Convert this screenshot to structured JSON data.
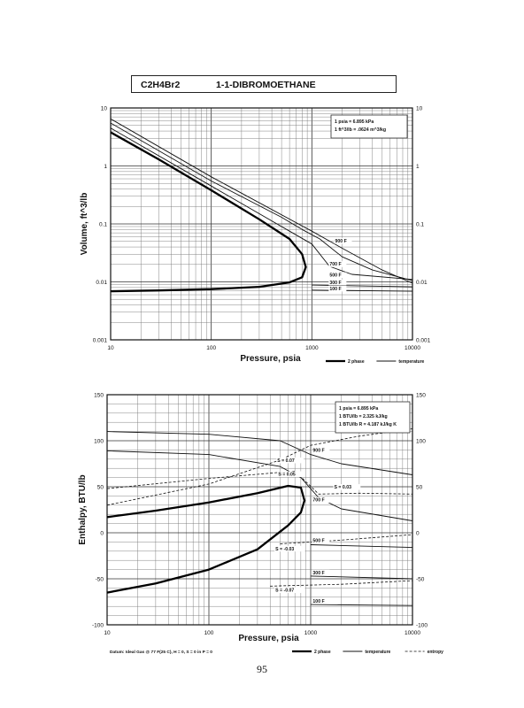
{
  "page_header": {
    "formula": "C2H4Br2",
    "compound": "1-1-DIBROMOETHANE"
  },
  "page_number": "95",
  "chart_data": [
    {
      "type": "line",
      "xscale": "log",
      "yscale": "log",
      "xlabel": "Pressure,  psia",
      "ylabel": "Volume, ft^3/lb",
      "xlim": [
        10,
        10000
      ],
      "ylim": [
        0.001,
        10
      ],
      "xticks": [
        {
          "v": 10,
          "label": "10"
        },
        {
          "v": 100,
          "label": "100"
        },
        {
          "v": 1000,
          "label": "1000"
        },
        {
          "v": 10000,
          "label": "10000"
        }
      ],
      "yticks": [
        {
          "v": 0.001,
          "label": "0.001"
        },
        {
          "v": 0.01,
          "label": "0.01"
        },
        {
          "v": 0.1,
          "label": "0.1"
        },
        {
          "v": 1,
          "label": "1"
        },
        {
          "v": 10,
          "label": "10"
        }
      ],
      "grid": true,
      "conversion_notes": [
        "1 psia  =  6.895 kPa",
        "1 ft^3/lb  =  .0624 m^3/kg"
      ],
      "legend": [
        {
          "label": "2 phase",
          "style": "thick"
        },
        {
          "label": "temperature",
          "style": "thin"
        }
      ],
      "series": [
        {
          "style": "thick",
          "points": [
            [
              10,
              3.8
            ],
            [
              30,
              1.3
            ],
            [
              100,
              0.38
            ],
            [
              300,
              0.12
            ],
            [
              600,
              0.055
            ],
            [
              800,
              0.03
            ],
            [
              870,
              0.018
            ],
            [
              800,
              0.012
            ],
            [
              600,
              0.0098
            ],
            [
              300,
              0.0082
            ],
            [
              100,
              0.0075
            ],
            [
              30,
              0.0071
            ],
            [
              10,
              0.0069
            ]
          ]
        },
        {
          "name": "500 F",
          "style": "thin",
          "points": [
            [
              10,
              4.5
            ],
            [
              100,
              0.45
            ],
            [
              600,
              0.075
            ],
            [
              1000,
              0.045
            ],
            [
              1500,
              0.0185
            ],
            [
              2500,
              0.0135
            ],
            [
              10000,
              0.011
            ]
          ]
        },
        {
          "name": "700 F",
          "style": "thin",
          "points": [
            [
              10,
              5.5
            ],
            [
              100,
              0.55
            ],
            [
              500,
              0.13
            ],
            [
              800,
              0.08
            ],
            [
              1200,
              0.055
            ],
            [
              2000,
              0.027
            ],
            [
              4000,
              0.016
            ],
            [
              10000,
              0.0105
            ]
          ]
        },
        {
          "name": "900 F",
          "style": "thin",
          "points": [
            [
              10,
              6.5
            ],
            [
              100,
              0.65
            ],
            [
              1000,
              0.075
            ],
            [
              2000,
              0.038
            ],
            [
              5000,
              0.016
            ],
            [
              10000,
              0.0095
            ]
          ]
        },
        {
          "name": "300 F",
          "style": "thin",
          "points": [
            [
              1000,
              0.0088
            ],
            [
              10000,
              0.0082
            ]
          ]
        },
        {
          "name": "100 F",
          "style": "thin",
          "points": [
            [
              1000,
              0.0072
            ],
            [
              10000,
              0.0069
            ]
          ]
        }
      ],
      "curve_labels": [
        {
          "label": "900 F",
          "x": 1700,
          "y": 0.048
        },
        {
          "label": "700 F",
          "x": 1500,
          "y": 0.019
        },
        {
          "label": "500 F",
          "x": 1500,
          "y": 0.0123
        },
        {
          "label": "300 F",
          "x": 1500,
          "y": 0.0092
        },
        {
          "label": "100 F",
          "x": 1500,
          "y": 0.0072
        }
      ]
    },
    {
      "type": "line",
      "xscale": "log",
      "yscale": "linear",
      "xlabel": "Pressure,  psia",
      "ylabel": "Enthalpy, BTU/lb",
      "xlim": [
        10,
        10000
      ],
      "ylim": [
        -100,
        150
      ],
      "xticks": [
        {
          "v": 10,
          "label": "10"
        },
        {
          "v": 100,
          "label": "100"
        },
        {
          "v": 1000,
          "label": "1000"
        },
        {
          "v": 10000,
          "label": "10000"
        }
      ],
      "yticks": [
        {
          "v": -100,
          "label": "-100"
        },
        {
          "v": -50,
          "label": "-50"
        },
        {
          "v": 0,
          "label": "0"
        },
        {
          "v": 50,
          "label": "50"
        },
        {
          "v": 100,
          "label": "100"
        },
        {
          "v": 150,
          "label": "150"
        }
      ],
      "grid": true,
      "conversion_notes": [
        "1 psia  =  6.895 kPa",
        "1 BTU/lb  =  2.325 kJ/kg",
        "1 BTU/lb R  =  4.187 kJ/kg K"
      ],
      "datum_note": "Datum: Ideal Gas @ 77 F(25 C),  H = 0,  S = 0 in P = 0",
      "legend": [
        {
          "label": "2 phase",
          "style": "thick"
        },
        {
          "label": "temperature",
          "style": "thin"
        },
        {
          "label": "entropy",
          "style": "dashed"
        }
      ],
      "series": [
        {
          "style": "thick",
          "points": [
            [
              10,
              17
            ],
            [
              30,
              24
            ],
            [
              100,
              33
            ],
            [
              300,
              43
            ],
            [
              600,
              51
            ],
            [
              800,
              49
            ],
            [
              870,
              35
            ],
            [
              800,
              22
            ],
            [
              600,
              8
            ],
            [
              300,
              -18
            ],
            [
              100,
              -40
            ],
            [
              30,
              -55
            ],
            [
              10,
              -65
            ]
          ]
        },
        {
          "name": "900 F",
          "style": "thin",
          "points": [
            [
              10,
              110
            ],
            [
              100,
              107
            ],
            [
              500,
              100
            ],
            [
              1000,
              85
            ],
            [
              2000,
              75
            ],
            [
              10000,
              63
            ]
          ]
        },
        {
          "name": "700 F",
          "style": "thin",
          "points": [
            [
              10,
              89
            ],
            [
              100,
              85
            ],
            [
              500,
              72
            ],
            [
              800,
              60
            ],
            [
              1200,
              38
            ],
            [
              2000,
              26
            ],
            [
              10000,
              13
            ]
          ]
        },
        {
          "name": "500 F",
          "style": "thin",
          "points": [
            [
              1000,
              -13
            ],
            [
              10000,
              -16
            ]
          ]
        },
        {
          "name": "300 F",
          "style": "thin",
          "points": [
            [
              1000,
              -47
            ],
            [
              10000,
              -50
            ]
          ]
        },
        {
          "name": "100 F",
          "style": "thin",
          "points": [
            [
              1000,
              -78
            ],
            [
              10000,
              -79
            ]
          ]
        },
        {
          "name": "S = 0.07",
          "style": "dashed",
          "points": [
            [
              10,
              30
            ],
            [
              100,
              53
            ],
            [
              500,
              79
            ],
            [
              1000,
              95
            ],
            [
              3000,
              105
            ],
            [
              10000,
              113
            ]
          ]
        },
        {
          "name": "S = 0.05",
          "style": "dashed",
          "points": [
            [
              10,
              48
            ],
            [
              100,
              59
            ],
            [
              700,
              67
            ],
            [
              1200,
              42
            ],
            [
              3000,
              43
            ],
            [
              10000,
              42
            ]
          ]
        },
        {
          "name": "S = -0.03",
          "style": "dashed",
          "points": [
            [
              500,
              -12
            ],
            [
              2000,
              -8
            ],
            [
              10000,
              -2
            ]
          ]
        },
        {
          "name": "S = -0.07",
          "style": "dashed",
          "points": [
            [
              400,
              -58
            ],
            [
              2000,
              -56
            ],
            [
              10000,
              -52
            ]
          ]
        }
      ],
      "curve_labels": [
        {
          "label": "S = 0.07",
          "x": 470,
          "y": 77
        },
        {
          "label": "S = 0.05",
          "x": 480,
          "y": 62
        },
        {
          "label": "900 F",
          "x": 1050,
          "y": 88
        },
        {
          "label": "S = 0.03",
          "x": 1700,
          "y": 48
        },
        {
          "label": "700 F",
          "x": 1050,
          "y": 34
        },
        {
          "label": "S = -0.03",
          "x": 450,
          "y": -19
        },
        {
          "label": "500 F",
          "x": 1050,
          "y": -10
        },
        {
          "label": "300 F",
          "x": 1050,
          "y": -45
        },
        {
          "label": "S = -0.07",
          "x": 450,
          "y": -64
        },
        {
          "label": "100 F",
          "x": 1050,
          "y": -76
        }
      ]
    }
  ]
}
